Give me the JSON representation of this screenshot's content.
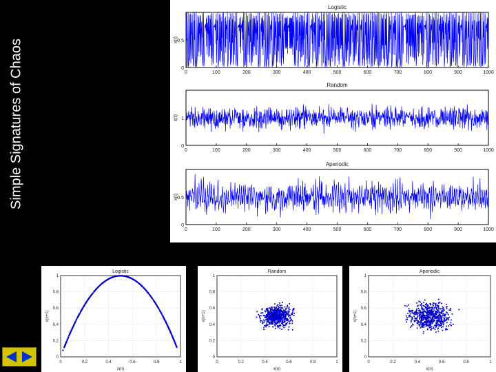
{
  "slide": {
    "title": "Simple Signatures of Chaos"
  },
  "nav": {
    "prev_icon": "triangle-left-icon",
    "next_icon": "triangle-right-icon",
    "color": "#0033cc"
  },
  "chart_data": [
    {
      "type": "line",
      "title": "Logistic",
      "ylabel": "x(t)",
      "xlim": [
        0,
        1000
      ],
      "ylim": [
        0,
        1
      ],
      "xticks": [
        "0",
        "100",
        "200",
        "300",
        "400",
        "500",
        "600",
        "700",
        "800",
        "900",
        "1000"
      ],
      "yticks": [
        {
          "v": 0,
          "label": "0"
        },
        {
          "v": 0.5,
          "label": "0.5"
        }
      ],
      "series": [
        {
          "generator": "logistic",
          "color": "#0000ff"
        }
      ]
    },
    {
      "type": "line",
      "title": "Random",
      "ylabel": "x(t)",
      "xlim": [
        0,
        1000
      ],
      "ylim": [
        0,
        2
      ],
      "xticks": [
        "0",
        "100",
        "200",
        "300",
        "400",
        "500",
        "600",
        "700",
        "800",
        "900",
        "1000"
      ],
      "yticks": [
        {
          "v": 0,
          "label": "0"
        },
        {
          "v": 1,
          "label": "1"
        }
      ],
      "series": [
        {
          "generator": "random",
          "color": "#0000ff"
        }
      ]
    },
    {
      "type": "line",
      "title": "Aperiodic",
      "ylabel": "x(t)",
      "xlim": [
        0,
        1000
      ],
      "ylim": [
        0,
        1
      ],
      "xticks": [
        "0",
        "100",
        "200",
        "300",
        "400",
        "500",
        "600",
        "700",
        "800",
        "900",
        "1000"
      ],
      "yticks": [
        {
          "v": 0,
          "label": "0"
        },
        {
          "v": 0.5,
          "label": "0.5"
        }
      ],
      "series": [
        {
          "generator": "aperiodic",
          "color": "#0000ff"
        }
      ]
    },
    {
      "type": "scatter",
      "title": "Logistic",
      "xlabel": "x(n)",
      "ylabel": "x(n+1)",
      "xlim": [
        0,
        1
      ],
      "ylim": [
        0,
        1
      ],
      "xticks": [
        "0",
        "0.2",
        "0.4",
        "0.6",
        "0.8",
        "1"
      ],
      "yticks": [
        "0",
        "0.2",
        "0.4",
        "0.6",
        "0.8",
        "1"
      ],
      "series": [
        {
          "generator": "logistic-map",
          "color": "#0000cc"
        }
      ]
    },
    {
      "type": "scatter",
      "title": "Random",
      "xlabel": "x(n)",
      "ylabel": "x(n+1)",
      "xlim": [
        0,
        1
      ],
      "ylim": [
        0,
        1
      ],
      "xticks": [
        "0",
        "0.2",
        "0.4",
        "0.6",
        "0.8",
        "1"
      ],
      "yticks": [
        "0",
        "0.2",
        "0.4",
        "0.6",
        "0.8",
        "1"
      ],
      "series": [
        {
          "generator": "random-cloud",
          "color": "#0000cc"
        }
      ]
    },
    {
      "type": "scatter",
      "title": "Aperiodic",
      "xlabel": "x(n)",
      "ylabel": "x(n+1)",
      "xlim": [
        0,
        1
      ],
      "ylim": [
        0,
        1
      ],
      "xticks": [
        "0",
        "0.2",
        "0.4",
        "0.6",
        "0.8",
        "1"
      ],
      "yticks": [
        "0",
        "0.2",
        "0.4",
        "0.6",
        "0.8",
        "1"
      ],
      "series": [
        {
          "generator": "aperiodic-cloud",
          "color": "#0000cc"
        }
      ]
    }
  ]
}
